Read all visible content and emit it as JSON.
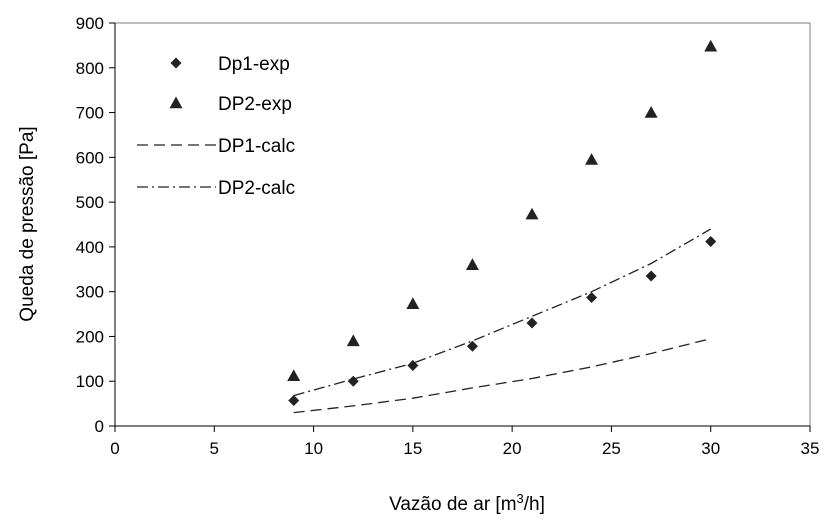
{
  "chart_data": {
    "type": "scatter",
    "xlabel": "Vazão de ar [m",
    "xlabel_sup": "3",
    "xlabel_tail": "/h]",
    "ylabel": "Queda de pressão [Pa]",
    "xlim": [
      0,
      35
    ],
    "ylim": [
      0,
      900
    ],
    "x_ticks": [
      "0",
      "5",
      "10",
      "15",
      "20",
      "25",
      "30",
      "35"
    ],
    "y_ticks": [
      "0",
      "100",
      "200",
      "300",
      "400",
      "500",
      "600",
      "700",
      "800",
      "900"
    ],
    "grid": false,
    "legend_position": "top-left",
    "series": [
      {
        "name": "Dp1-exp",
        "kind": "marker",
        "marker": "diamond",
        "points": [
          [
            9,
            57
          ],
          [
            12,
            100
          ],
          [
            15,
            135
          ],
          [
            18,
            178
          ],
          [
            21,
            230
          ],
          [
            24,
            287
          ],
          [
            27,
            335
          ],
          [
            30,
            412
          ]
        ]
      },
      {
        "name": "DP2-exp",
        "kind": "marker",
        "marker": "triangle",
        "points": [
          [
            9,
            112
          ],
          [
            12,
            190
          ],
          [
            15,
            273
          ],
          [
            18,
            360
          ],
          [
            21,
            473
          ],
          [
            24,
            595
          ],
          [
            27,
            700
          ],
          [
            30,
            848
          ]
        ]
      },
      {
        "name": "DP1-calc",
        "kind": "line",
        "dash": "dashed",
        "points": [
          [
            9,
            30
          ],
          [
            12,
            45
          ],
          [
            15,
            62
          ],
          [
            18,
            85
          ],
          [
            21,
            106
          ],
          [
            24,
            132
          ],
          [
            27,
            162
          ],
          [
            30,
            195
          ]
        ]
      },
      {
        "name": "DP2-calc",
        "kind": "line",
        "dash": "dashdot",
        "points": [
          [
            9,
            68
          ],
          [
            12,
            105
          ],
          [
            15,
            140
          ],
          [
            18,
            190
          ],
          [
            21,
            245
          ],
          [
            24,
            300
          ],
          [
            27,
            363
          ],
          [
            30,
            440
          ]
        ]
      }
    ],
    "colors": {
      "markers": "#222222",
      "lines": "#222222",
      "axes": "#000000",
      "plot_border": "#808080"
    }
  }
}
